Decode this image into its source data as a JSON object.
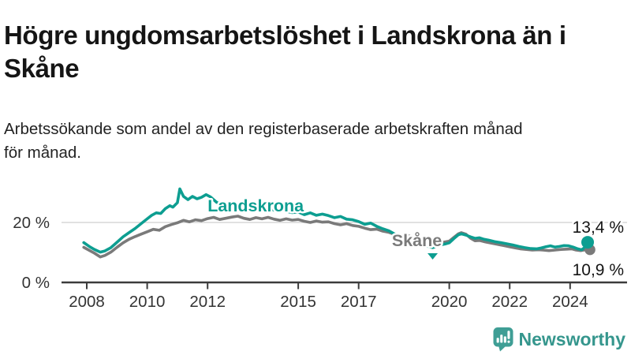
{
  "header": {
    "title": "Högre ungdomsarbetslöshet i Landskrona än i\nSkåne",
    "subtitle": "Arbetssökande som andel av den registerbaserade arbetskraften månad\nför månad."
  },
  "chart_data": {
    "type": "line",
    "title": "Högre ungdomsarbetslöshet i Landskrona än i Skåne",
    "subtitle": "Arbetssökande som andel av den registerbaserade arbetskraften månad för månad.",
    "unit": "%",
    "x_ticks": [
      2008,
      2010,
      2012,
      2015,
      2017,
      2020,
      2022,
      2024
    ],
    "y_ticks": [
      {
        "label": "0 %",
        "value": 0
      },
      {
        "label": "20 %",
        "value": 20
      }
    ],
    "ylim": [
      0,
      36
    ],
    "grid": "horizontal-20-only",
    "colors": {
      "landskrona": "#0d9e91",
      "skane": "#7a7a7a",
      "axis": "#3c3c3c",
      "gridline": "#d7d7d7",
      "value_label": "#141414"
    },
    "min_marker": {
      "series": "Landskrona",
      "x": 2019.45,
      "value": 11.6
    },
    "series": [
      {
        "name": "Landskrona",
        "color": "#0d9e91",
        "end_value_label": "13,4 %",
        "end_value": 13.4,
        "label_pos": {
          "x": 2012.0,
          "value": 25.5
        },
        "points": [
          [
            2007.9,
            13.3
          ],
          [
            2008.1,
            11.9
          ],
          [
            2008.25,
            11.0
          ],
          [
            2008.45,
            10.1
          ],
          [
            2008.6,
            10.5
          ],
          [
            2008.8,
            11.6
          ],
          [
            2009.0,
            13.4
          ],
          [
            2009.2,
            15.2
          ],
          [
            2009.4,
            16.6
          ],
          [
            2009.6,
            18.0
          ],
          [
            2009.8,
            19.6
          ],
          [
            2010.0,
            21.2
          ],
          [
            2010.15,
            22.4
          ],
          [
            2010.3,
            23.2
          ],
          [
            2010.45,
            23.0
          ],
          [
            2010.6,
            24.6
          ],
          [
            2010.75,
            25.6
          ],
          [
            2010.85,
            25.1
          ],
          [
            2011.0,
            26.6
          ],
          [
            2011.08,
            31.2
          ],
          [
            2011.2,
            28.7
          ],
          [
            2011.35,
            27.6
          ],
          [
            2011.5,
            28.7
          ],
          [
            2011.65,
            27.9
          ],
          [
            2011.8,
            28.4
          ],
          [
            2011.95,
            29.3
          ],
          [
            2012.1,
            28.5
          ],
          [
            2012.3,
            26.7
          ],
          [
            2012.5,
            25.8
          ],
          [
            2012.7,
            25.2
          ],
          [
            2012.85,
            25.6
          ],
          [
            2013.0,
            25.9
          ],
          [
            2013.2,
            25.1
          ],
          [
            2013.4,
            25.5
          ],
          [
            2013.6,
            24.8
          ],
          [
            2013.8,
            25.2
          ],
          [
            2014.0,
            24.9
          ],
          [
            2014.2,
            24.1
          ],
          [
            2014.4,
            24.5
          ],
          [
            2014.6,
            23.7
          ],
          [
            2014.8,
            23.3
          ],
          [
            2015.0,
            23.5
          ],
          [
            2015.2,
            22.6
          ],
          [
            2015.4,
            23.2
          ],
          [
            2015.6,
            22.4
          ],
          [
            2015.8,
            22.8
          ],
          [
            2016.0,
            22.3
          ],
          [
            2016.2,
            21.6
          ],
          [
            2016.4,
            22.0
          ],
          [
            2016.6,
            21.1
          ],
          [
            2016.8,
            20.9
          ],
          [
            2017.0,
            20.3
          ],
          [
            2017.2,
            19.4
          ],
          [
            2017.4,
            19.8
          ],
          [
            2017.6,
            18.7
          ],
          [
            2017.8,
            17.9
          ],
          [
            2018.0,
            17.2
          ],
          [
            2018.2,
            16.1
          ],
          [
            2018.4,
            15.5
          ],
          [
            2018.6,
            14.7
          ],
          [
            2018.8,
            13.9
          ],
          [
            2019.0,
            13.1
          ],
          [
            2019.2,
            12.3
          ],
          [
            2019.45,
            11.6
          ],
          [
            2019.65,
            12.4
          ],
          [
            2019.85,
            12.8
          ],
          [
            2020.0,
            13.2
          ],
          [
            2020.15,
            14.6
          ],
          [
            2020.3,
            15.9
          ],
          [
            2020.4,
            16.2
          ],
          [
            2020.55,
            15.8
          ],
          [
            2020.7,
            15.2
          ],
          [
            2020.85,
            14.7
          ],
          [
            2021.0,
            14.9
          ],
          [
            2021.15,
            14.4
          ],
          [
            2021.3,
            14.1
          ],
          [
            2021.5,
            13.6
          ],
          [
            2021.7,
            13.3
          ],
          [
            2021.9,
            12.9
          ],
          [
            2022.1,
            12.5
          ],
          [
            2022.3,
            12.0
          ],
          [
            2022.5,
            11.6
          ],
          [
            2022.7,
            11.3
          ],
          [
            2022.9,
            11.2
          ],
          [
            2023.05,
            11.5
          ],
          [
            2023.2,
            11.9
          ],
          [
            2023.35,
            12.2
          ],
          [
            2023.5,
            11.8
          ],
          [
            2023.65,
            12.0
          ],
          [
            2023.8,
            12.3
          ],
          [
            2023.95,
            12.2
          ],
          [
            2024.1,
            11.8
          ],
          [
            2024.25,
            11.2
          ],
          [
            2024.38,
            10.9
          ],
          [
            2024.48,
            11.6
          ],
          [
            2024.58,
            13.4
          ]
        ]
      },
      {
        "name": "Skåne",
        "color": "#7a7a7a",
        "end_value_label": "10,9 %",
        "end_value": 10.9,
        "label_pos": {
          "x": 2018.1,
          "value": 14.0
        },
        "points": [
          [
            2007.9,
            11.7
          ],
          [
            2008.1,
            10.6
          ],
          [
            2008.25,
            9.8
          ],
          [
            2008.45,
            8.5
          ],
          [
            2008.6,
            9.0
          ],
          [
            2008.8,
            10.1
          ],
          [
            2009.0,
            11.7
          ],
          [
            2009.2,
            13.2
          ],
          [
            2009.4,
            14.4
          ],
          [
            2009.6,
            15.3
          ],
          [
            2009.8,
            16.1
          ],
          [
            2010.0,
            16.9
          ],
          [
            2010.2,
            17.7
          ],
          [
            2010.4,
            17.4
          ],
          [
            2010.6,
            18.6
          ],
          [
            2010.8,
            19.3
          ],
          [
            2011.0,
            19.9
          ],
          [
            2011.2,
            20.7
          ],
          [
            2011.4,
            20.2
          ],
          [
            2011.6,
            20.9
          ],
          [
            2011.8,
            20.6
          ],
          [
            2012.0,
            21.3
          ],
          [
            2012.2,
            21.7
          ],
          [
            2012.4,
            21.0
          ],
          [
            2012.6,
            21.4
          ],
          [
            2012.8,
            21.8
          ],
          [
            2013.0,
            22.1
          ],
          [
            2013.2,
            21.4
          ],
          [
            2013.4,
            21.0
          ],
          [
            2013.6,
            21.6
          ],
          [
            2013.8,
            21.2
          ],
          [
            2014.0,
            21.7
          ],
          [
            2014.2,
            21.1
          ],
          [
            2014.4,
            20.7
          ],
          [
            2014.6,
            21.2
          ],
          [
            2014.8,
            20.8
          ],
          [
            2015.0,
            21.0
          ],
          [
            2015.2,
            20.4
          ],
          [
            2015.4,
            20.0
          ],
          [
            2015.6,
            20.5
          ],
          [
            2015.8,
            20.1
          ],
          [
            2016.0,
            20.2
          ],
          [
            2016.2,
            19.6
          ],
          [
            2016.4,
            19.2
          ],
          [
            2016.6,
            19.6
          ],
          [
            2016.8,
            19.0
          ],
          [
            2017.0,
            18.7
          ],
          [
            2017.2,
            18.1
          ],
          [
            2017.4,
            17.6
          ],
          [
            2017.6,
            17.8
          ],
          [
            2017.8,
            17.1
          ],
          [
            2018.0,
            16.7
          ],
          [
            2018.2,
            16.0
          ],
          [
            2018.4,
            15.5
          ],
          [
            2018.6,
            15.7
          ],
          [
            2018.8,
            15.0
          ],
          [
            2019.0,
            14.5
          ],
          [
            2019.2,
            14.0
          ],
          [
            2019.4,
            13.6
          ],
          [
            2019.6,
            13.8
          ],
          [
            2019.8,
            13.4
          ],
          [
            2020.0,
            13.8
          ],
          [
            2020.15,
            15.0
          ],
          [
            2020.3,
            16.2
          ],
          [
            2020.4,
            16.6
          ],
          [
            2020.55,
            16.1
          ],
          [
            2020.7,
            14.8
          ],
          [
            2020.85,
            13.9
          ],
          [
            2021.0,
            14.0
          ],
          [
            2021.2,
            13.5
          ],
          [
            2021.4,
            13.1
          ],
          [
            2021.6,
            12.7
          ],
          [
            2021.8,
            12.3
          ],
          [
            2022.0,
            11.9
          ],
          [
            2022.2,
            11.5
          ],
          [
            2022.35,
            11.2
          ],
          [
            2022.55,
            11.0
          ],
          [
            2022.75,
            10.8
          ],
          [
            2022.95,
            10.9
          ],
          [
            2023.1,
            10.8
          ],
          [
            2023.3,
            10.6
          ],
          [
            2023.5,
            10.8
          ],
          [
            2023.7,
            11.0
          ],
          [
            2023.9,
            11.1
          ],
          [
            2024.05,
            11.2
          ],
          [
            2024.2,
            10.8
          ],
          [
            2024.35,
            10.6
          ],
          [
            2024.45,
            10.8
          ],
          [
            2024.58,
            10.9
          ]
        ]
      }
    ]
  },
  "branding": {
    "logo_text": "Newsworthy",
    "color": "#35968d",
    "icon": "chart-bubble-icon"
  }
}
